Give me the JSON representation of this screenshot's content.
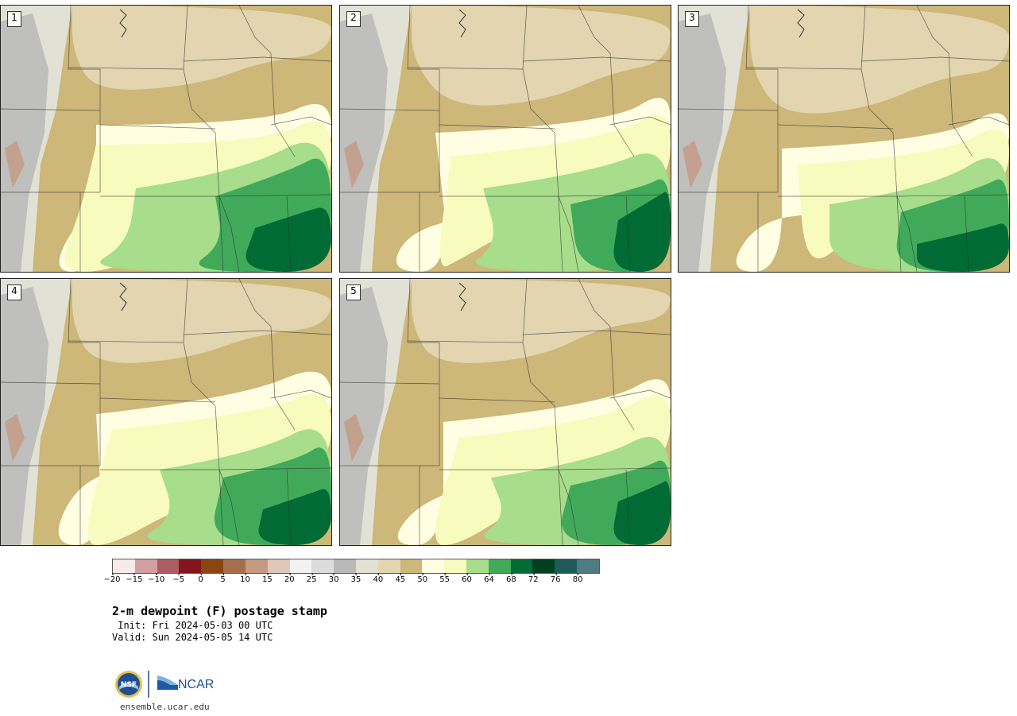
{
  "panels": [
    {
      "label": "1",
      "variant": 0
    },
    {
      "label": "2",
      "variant": 1
    },
    {
      "label": "3",
      "variant": 2
    },
    {
      "label": "4",
      "variant": 3
    },
    {
      "label": "5",
      "variant": 4
    }
  ],
  "colorbar": {
    "colors": [
      "#f7eaea",
      "#d29ea3",
      "#ad5c62",
      "#83151c",
      "#8b4513",
      "#a76e4b",
      "#c49a82",
      "#e0c7b8",
      "#f2f2f2",
      "#dcdcdc",
      "#b9b9b9",
      "#e2e1d6",
      "#e2d5b0",
      "#cdb779",
      "#fffee3",
      "#f7fbbd",
      "#a7dd8b",
      "#41aa5a",
      "#006b35",
      "#003f20",
      "#1c5b5a",
      "#4f7b83"
    ],
    "ticks": [
      "−20",
      "−15",
      "−10",
      "−5",
      "0",
      "5",
      "10",
      "15",
      "20",
      "25",
      "30",
      "35",
      "40",
      "45",
      "50",
      "55",
      "60",
      "64",
      "68",
      "72",
      "76",
      "80"
    ]
  },
  "title": "2-m dewpoint (F) postage stamp",
  "init": " Init: Fri 2024-05-03 00 UTC",
  "valid": "Valid: Sun 2024-05-05 14 UTC",
  "logo": {
    "nsf": "NSF",
    "ncar": "NCAR"
  },
  "site": "ensemble.ucar.edu",
  "colors": {
    "tan_dark": "#cdb779",
    "tan_light": "#e2d5b0",
    "gray_light": "#e2e1d6",
    "cream": "#fffee3",
    "yellow": "#f7fbbd",
    "green_light": "#a7dd8b",
    "green_mid": "#41aa5a",
    "green_dark": "#006b35",
    "mountain_gray": "#b9b9b9"
  }
}
